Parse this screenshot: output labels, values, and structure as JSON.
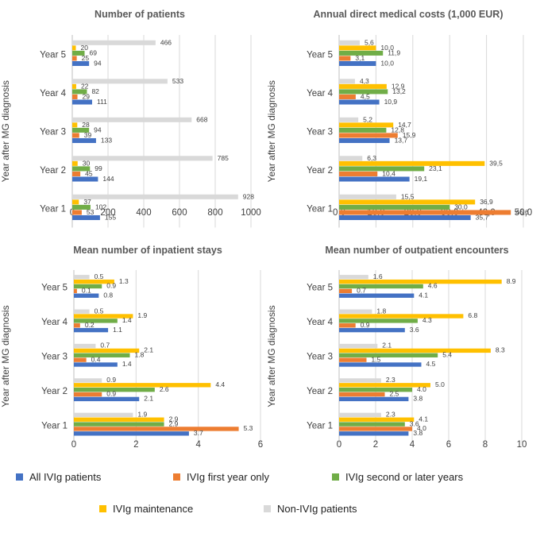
{
  "chart_data": [
    {
      "type": "bar",
      "orientation": "horizontal",
      "title": "Number of patients",
      "ylabel": "Year after MG diagnosis",
      "categories": [
        "Year 1",
        "Year 2",
        "Year 3",
        "Year 4",
        "Year 5"
      ],
      "xlim": [
        0,
        1000
      ],
      "xticks": [
        "0",
        "200",
        "400",
        "600",
        "800",
        "1000"
      ],
      "series": [
        {
          "name": "All IVIg patients",
          "values": [
            155,
            144,
            133,
            111,
            94
          ],
          "labels": [
            "155",
            "144",
            "133",
            "111",
            "94"
          ]
        },
        {
          "name": "IVIg first year only",
          "values": [
            53,
            45,
            39,
            29,
            25
          ],
          "labels": [
            "53",
            "45",
            "39",
            "29",
            "25"
          ]
        },
        {
          "name": "IVIg second or later years",
          "values": [
            102,
            99,
            94,
            82,
            69
          ],
          "labels": [
            "102",
            "99",
            "94",
            "82",
            "69"
          ]
        },
        {
          "name": "IVIg maintenance",
          "values": [
            37,
            30,
            28,
            22,
            20
          ],
          "labels": [
            "37",
            "30",
            "28",
            "22",
            "20"
          ]
        },
        {
          "name": "Non-IVIg patients",
          "values": [
            928,
            785,
            668,
            533,
            466
          ],
          "labels": [
            "928",
            "785",
            "668",
            "533",
            "466"
          ]
        }
      ]
    },
    {
      "type": "bar",
      "orientation": "horizontal",
      "title": "Annual direct medical costs (1,000 EUR)",
      "ylabel": "Year after MG diagnosis",
      "categories": [
        "Year 1",
        "Year 2",
        "Year 3",
        "Year 4",
        "Year 5"
      ],
      "xlim": [
        0,
        50
      ],
      "xticks": [
        "0,0",
        "10,0",
        "20,0",
        "30,0",
        "40,0",
        "50,0"
      ],
      "series": [
        {
          "name": "All IVIg patients",
          "values": [
            35.7,
            19.1,
            13.7,
            10.9,
            10.0
          ],
          "labels": [
            "35,7",
            "19,1",
            "13,7",
            "10,9",
            "10,0"
          ]
        },
        {
          "name": "IVIg first year only",
          "values": [
            46.6,
            10.4,
            15.9,
            4.5,
            3.1
          ],
          "labels": [
            "46,6",
            "10,4",
            "15,9",
            "4,5",
            "3,1"
          ]
        },
        {
          "name": "IVIg second or later years",
          "values": [
            30.0,
            23.1,
            12.8,
            13.2,
            11.9
          ],
          "labels": [
            "30,0",
            "23,1",
            "12,8",
            "13,2",
            "11,9"
          ]
        },
        {
          "name": "IVIg maintenance",
          "values": [
            36.9,
            39.5,
            14.7,
            12.9,
            10.0
          ],
          "labels": [
            "36,9",
            "39,5",
            "14,7",
            "12,9",
            "10,0"
          ]
        },
        {
          "name": "Non-IVIg patients",
          "values": [
            15.5,
            6.3,
            5.2,
            4.3,
            5.6
          ],
          "labels": [
            "15,5",
            "6,3",
            "5,2",
            "4,3",
            "5,6"
          ]
        }
      ]
    },
    {
      "type": "bar",
      "orientation": "horizontal",
      "title": "Mean number of inpatient stays",
      "ylabel": "Year after MG diagnosis",
      "categories": [
        "Year 1",
        "Year 2",
        "Year 3",
        "Year 4",
        "Year 5"
      ],
      "xlim": [
        0,
        6
      ],
      "xticks": [
        "0",
        "2",
        "4",
        "6"
      ],
      "series": [
        {
          "name": "All IVIg patients",
          "values": [
            3.7,
            2.1,
            1.4,
            1.1,
            0.8
          ],
          "labels": [
            "3.7",
            "2.1",
            "1.4",
            "1.1",
            "0.8"
          ]
        },
        {
          "name": "IVIg first year only",
          "values": [
            5.3,
            0.9,
            0.4,
            0.2,
            0.1
          ],
          "labels": [
            "5.3",
            "0.9",
            "0.4",
            "0.2",
            "0.1"
          ]
        },
        {
          "name": "IVIg second or later years",
          "values": [
            2.9,
            2.6,
            1.8,
            1.4,
            0.9
          ],
          "labels": [
            "2.9",
            "2.6",
            "1.8",
            "1.4",
            "0.9"
          ]
        },
        {
          "name": "IVIg maintenance",
          "values": [
            2.9,
            4.4,
            2.1,
            1.9,
            1.3
          ],
          "labels": [
            "2.9",
            "4.4",
            "2.1",
            "1.9",
            "1.3"
          ]
        },
        {
          "name": "Non-IVIg patients",
          "values": [
            1.9,
            0.9,
            0.7,
            0.5,
            0.5
          ],
          "labels": [
            "1.9",
            "0.9",
            "0.7",
            "0.5",
            "0.5"
          ]
        }
      ]
    },
    {
      "type": "bar",
      "orientation": "horizontal",
      "title": "Mean number of outpatient encounters",
      "ylabel": "Year after MG diagnosis",
      "categories": [
        "Year 1",
        "Year 2",
        "Year 3",
        "Year 4",
        "Year 5"
      ],
      "xlim": [
        0,
        10
      ],
      "xticks": [
        "0",
        "2",
        "4",
        "6",
        "8",
        "10"
      ],
      "series": [
        {
          "name": "All IVIg patients",
          "values": [
            3.8,
            3.8,
            4.5,
            3.6,
            4.1
          ],
          "labels": [
            "3.8",
            "3.8",
            "4.5",
            "3.6",
            "4.1"
          ]
        },
        {
          "name": "IVIg first year only",
          "values": [
            4.0,
            2.5,
            1.5,
            0.9,
            0.7
          ],
          "labels": [
            "4.0",
            "2.5",
            "1.5",
            "0.9",
            "0.7"
          ]
        },
        {
          "name": "IVIg second or later years",
          "values": [
            3.6,
            4.0,
            5.4,
            4.3,
            4.6
          ],
          "labels": [
            "3.6",
            "4.0",
            "5.4",
            "4.3",
            "4.6"
          ]
        },
        {
          "name": "IVIg maintenance",
          "values": [
            4.1,
            5.0,
            8.3,
            6.8,
            8.9
          ],
          "labels": [
            "4.1",
            "5.0",
            "8.3",
            "6.8",
            "8.9"
          ]
        },
        {
          "name": "Non-IVIg patients",
          "values": [
            2.3,
            2.3,
            2.1,
            1.8,
            1.6
          ],
          "labels": [
            "2.3",
            "2.3",
            "2.1",
            "1.8",
            "1.6"
          ]
        }
      ]
    }
  ],
  "colors": {
    "All IVIg patients": "#4472C4",
    "IVIg first year only": "#ED7D31",
    "IVIg second or later years": "#70AD47",
    "IVIg maintenance": "#FFC000",
    "Non-IVIg patients": "#D9D9D9"
  },
  "legend": {
    "items": [
      {
        "label": "All IVIg patients",
        "color": "#4472C4"
      },
      {
        "label": "IVIg first year only",
        "color": "#ED7D31"
      },
      {
        "label": "IVIg second or later years",
        "color": "#70AD47"
      },
      {
        "label": "IVIg maintenance",
        "color": "#FFC000"
      },
      {
        "label": "Non-IVIg patients",
        "color": "#D9D9D9"
      }
    ]
  }
}
